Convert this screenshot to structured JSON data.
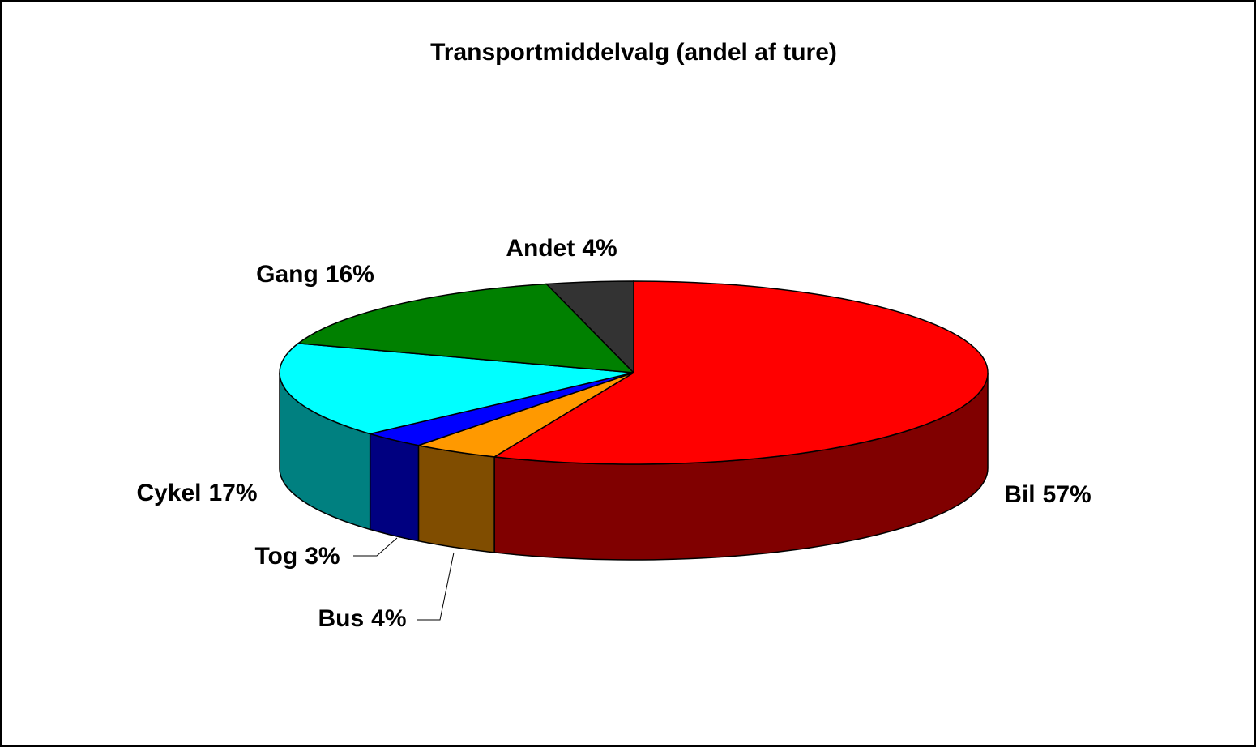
{
  "chart_data": {
    "type": "pie",
    "title": "Transportmiddelvalg (andel af ture)",
    "categories": [
      "Bil",
      "Bus",
      "Tog",
      "Cykel",
      "Gang",
      "Andet"
    ],
    "values": [
      57,
      4,
      3,
      17,
      16,
      4
    ],
    "value_labels": [
      "57%",
      "4%",
      "3%",
      "17%",
      "16%",
      "4%"
    ],
    "colors": [
      "#ff0000",
      "#ff9900",
      "#0000ff",
      "#00ffff",
      "#008000",
      "#333333"
    ],
    "three_d": true
  }
}
